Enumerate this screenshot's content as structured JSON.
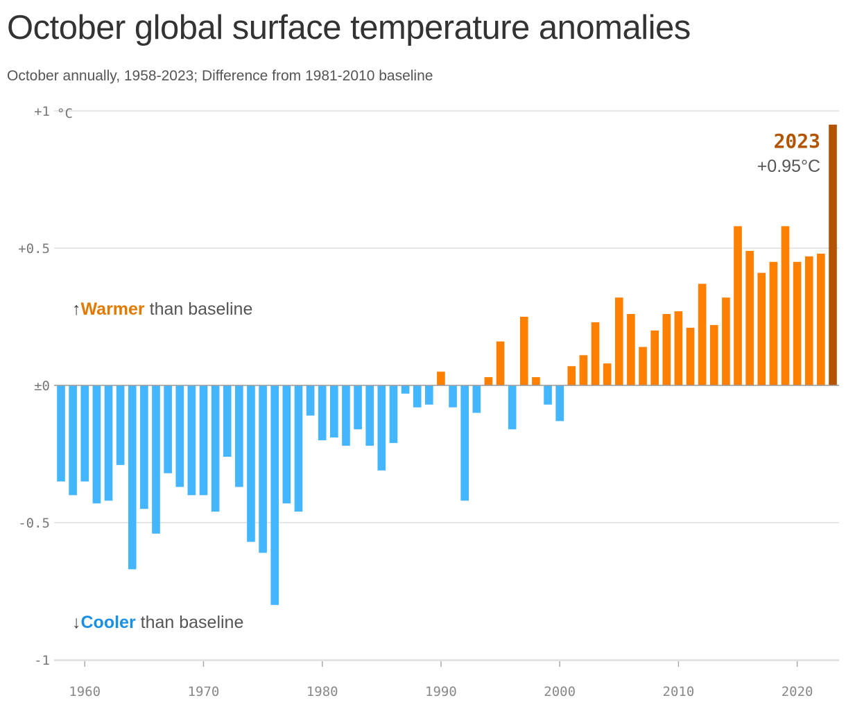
{
  "title": "October global surface temperature anomalies",
  "subtitle": "October annually, 1958-2023; Difference from 1981-2010 baseline",
  "annotations": {
    "warmer_arrow": "↑",
    "warmer_word": "Warmer",
    "warmer_rest": " than baseline",
    "cooler_arrow": "↓",
    "cooler_word": "Cooler",
    "cooler_rest": " than baseline"
  },
  "highlight": {
    "year": "2023",
    "value": "+0.95°C"
  },
  "colors": {
    "warm": "#ff7f00",
    "cool": "#44b6ff",
    "highlight": "#b35500",
    "grid": "#dddddd",
    "zero": "#999999"
  },
  "chart_data": {
    "type": "bar",
    "title": "October global surface temperature anomalies",
    "subtitle": "October annually, 1958-2023; Difference from 1981-2010 baseline",
    "ylabel_unit": "°C",
    "ylim": [
      -1,
      1
    ],
    "xlim": [
      1958,
      2023
    ],
    "y_ticks": [
      {
        "value": 1,
        "label": "+1"
      },
      {
        "value": 0.5,
        "label": "+0.5"
      },
      {
        "value": 0,
        "label": "±0"
      },
      {
        "value": -0.5,
        "label": "-0.5"
      },
      {
        "value": -1,
        "label": "-1"
      }
    ],
    "x_ticks": [
      1960,
      1970,
      1980,
      1990,
      2000,
      2010,
      2020
    ],
    "grid": true,
    "categories": [
      1958,
      1959,
      1960,
      1961,
      1962,
      1963,
      1964,
      1965,
      1966,
      1967,
      1968,
      1969,
      1970,
      1971,
      1972,
      1973,
      1974,
      1975,
      1976,
      1977,
      1978,
      1979,
      1980,
      1981,
      1982,
      1983,
      1984,
      1985,
      1986,
      1987,
      1988,
      1989,
      1990,
      1991,
      1992,
      1993,
      1994,
      1995,
      1996,
      1997,
      1998,
      1999,
      2000,
      2001,
      2002,
      2003,
      2004,
      2005,
      2006,
      2007,
      2008,
      2009,
      2010,
      2011,
      2012,
      2013,
      2014,
      2015,
      2016,
      2017,
      2018,
      2019,
      2020,
      2021,
      2022,
      2023
    ],
    "values": [
      -0.35,
      -0.4,
      -0.35,
      -0.43,
      -0.42,
      -0.29,
      -0.67,
      -0.45,
      -0.54,
      -0.32,
      -0.37,
      -0.4,
      -0.4,
      -0.46,
      -0.26,
      -0.37,
      -0.57,
      -0.61,
      -0.8,
      -0.43,
      -0.46,
      -0.11,
      -0.2,
      -0.19,
      -0.22,
      -0.16,
      -0.22,
      -0.31,
      -0.21,
      -0.03,
      -0.08,
      -0.07,
      0.05,
      -0.08,
      -0.42,
      -0.1,
      0.03,
      0.16,
      -0.16,
      0.25,
      0.03,
      -0.07,
      -0.13,
      0.07,
      0.11,
      0.23,
      0.08,
      0.32,
      0.26,
      0.14,
      0.2,
      0.26,
      0.27,
      0.21,
      0.37,
      0.22,
      0.32,
      0.58,
      0.49,
      0.41,
      0.45,
      0.58,
      0.45,
      0.47,
      0.48,
      0.95
    ]
  }
}
